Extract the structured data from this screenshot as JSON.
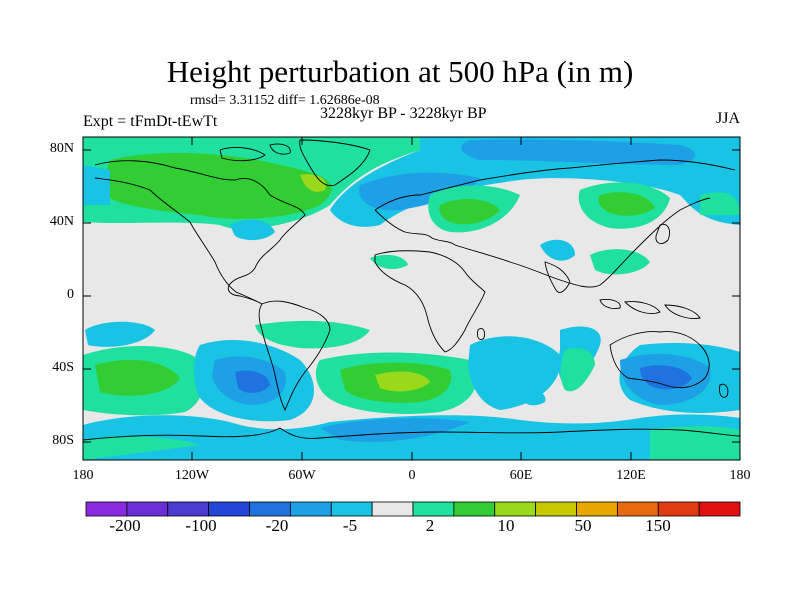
{
  "title": "Height perturbation at 500 hPa (in m)",
  "stats": "rmsd= 3.31152 diff= 1.62686e-08",
  "period": "3228kyr BP - 3228kyr BP",
  "expt": "Expt = tFmDt-tEwTt",
  "season": "JJA",
  "lat_labels": [
    "80N",
    "40N",
    "0",
    "40S",
    "80S"
  ],
  "lon_labels": [
    "180",
    "120W",
    "60W",
    "0",
    "60E",
    "120E",
    "180"
  ],
  "colorbar": {
    "colors": [
      "#8a2be2",
      "#6a2fd6",
      "#4b3cd0",
      "#2246d8",
      "#1e73e0",
      "#1ea0e6",
      "#18c3e4",
      "#e8e8e8",
      "#20e0a0",
      "#32cd32",
      "#9ad81a",
      "#c8c800",
      "#e6a800",
      "#e86a10",
      "#e03c10",
      "#e01010"
    ],
    "tick_labels": [
      "-200",
      "-100",
      "-20",
      "-5",
      "2",
      "10",
      "50",
      "150"
    ]
  }
}
